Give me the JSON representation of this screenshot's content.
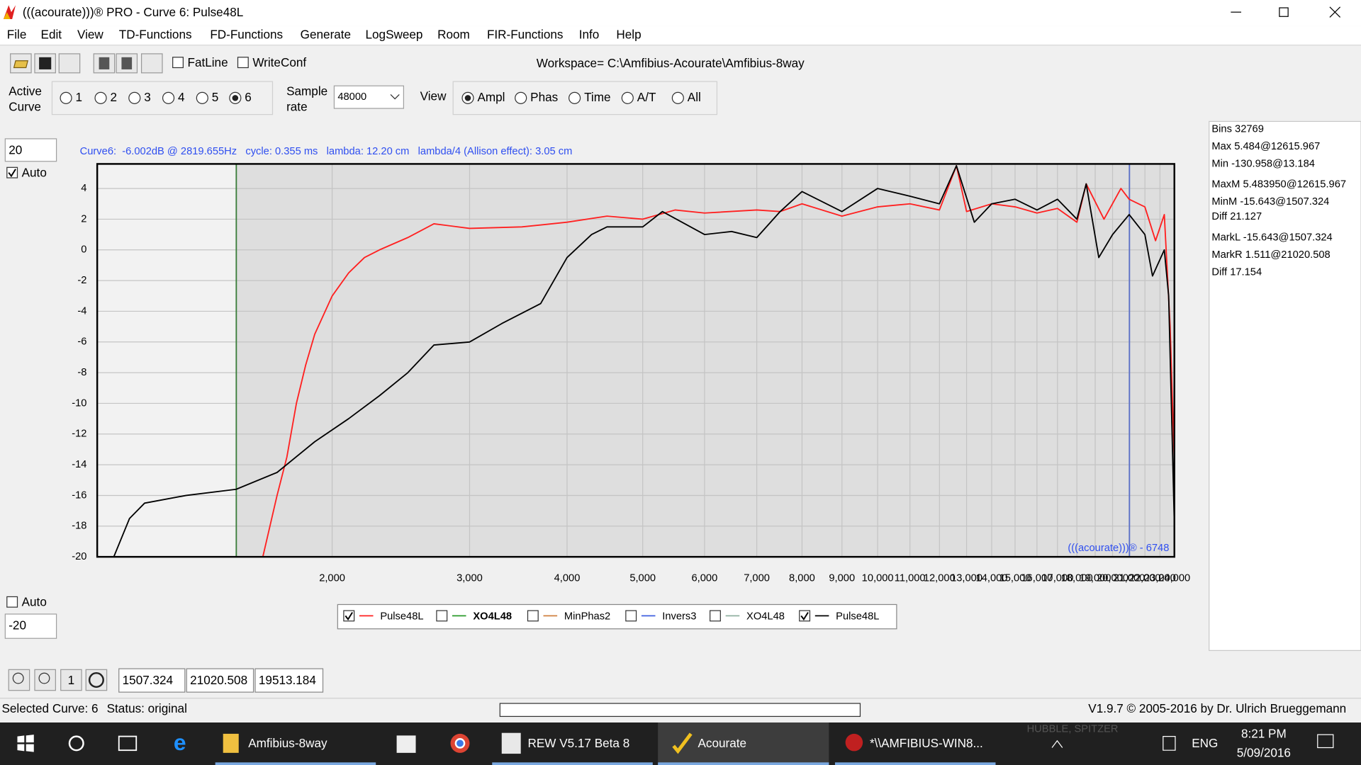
{
  "window": {
    "title": "(((acourate)))® PRO - Curve 6: Pulse48L"
  },
  "menu": [
    "File",
    "Edit",
    "View",
    "TD-Functions",
    "FD-Functions",
    "Generate",
    "LogSweep",
    "Room",
    "FIR-Functions",
    "Info",
    "Help"
  ],
  "toolbar": {
    "fatline": "FatLine",
    "writeconf": "WriteConf",
    "workspace": "Workspace= C:\\Amfibius-Acourate\\Amfibius-8way"
  },
  "controls": {
    "active_curve": [
      "Active",
      "Curve"
    ],
    "curves": [
      "1",
      "2",
      "3",
      "4",
      "5",
      "6"
    ],
    "curve_selected": [
      false,
      false,
      false,
      false,
      false,
      true
    ],
    "sample_rate_label": [
      "Sample",
      "rate"
    ],
    "sample_rate": "48000",
    "view_label": "View",
    "view_options": [
      "Ampl",
      "Phas",
      "Time",
      "A/T",
      "All"
    ],
    "view_selected": [
      true,
      false,
      false,
      false,
      false
    ]
  },
  "scale_controls": {
    "ymax_input": "20",
    "auto_top": "Auto",
    "auto_top_checked": true,
    "auto_bottom": "Auto",
    "auto_bottom_checked": false,
    "ymin_input": "-20"
  },
  "chart_data": {
    "type": "line",
    "subtitle": "Curve6:  -6.002dB @ 2819.655Hz   cycle: 0.355 ms   lambda: 12.20 cm   lambda/4 (Allison effect): 3.05 cm",
    "annotation": "(((acourate)))® - 6748",
    "x_log": true,
    "grid": true,
    "xlim": [
      1000,
      24000
    ],
    "ylim": [
      -20,
      5.6
    ],
    "yticks": [
      -20,
      -18,
      -16,
      -14,
      -12,
      -10,
      -8,
      -6,
      -4,
      -2,
      0,
      2,
      4
    ],
    "xticks": [
      {
        "value": 2000,
        "label": "2,000"
      },
      {
        "value": 3000,
        "label": "3,000"
      },
      {
        "value": 4000,
        "label": "4,000"
      },
      {
        "value": 5000,
        "label": "5,000"
      },
      {
        "value": 6000,
        "label": "6,000"
      },
      {
        "value": 7000,
        "label": "7,000"
      },
      {
        "value": 8000,
        "label": "8,000"
      },
      {
        "value": 9000,
        "label": "9,000"
      },
      {
        "value": 10000,
        "label": "10,000"
      },
      {
        "value": 11000,
        "label": "11,000"
      },
      {
        "value": 12000,
        "label": "12,000"
      },
      {
        "value": 13000,
        "label": "13,000"
      },
      {
        "value": 14000,
        "label": "14,000"
      },
      {
        "value": 15000,
        "label": "15,000"
      },
      {
        "value": 16000,
        "label": "16,000"
      },
      {
        "value": 17000,
        "label": "17,000"
      },
      {
        "value": 18000,
        "label": "18,000"
      },
      {
        "value": 19000,
        "label": "19,000"
      },
      {
        "value": 20000,
        "label": "20,000"
      },
      {
        "value": 21000,
        "label": "21,000"
      },
      {
        "value": 22000,
        "label": "22,000"
      },
      {
        "value": 23000,
        "label": "23,000"
      },
      {
        "value": 24000,
        "label": "24,000"
      }
    ],
    "markers": [
      {
        "x": 1507.324,
        "color": "#3a7d3a"
      },
      {
        "x": 21020.508,
        "color": "#5a6fc8"
      }
    ],
    "series": [
      {
        "name": "Pulse48L",
        "color": "#ff2020",
        "x": [
          1630,
          1700,
          1750,
          1800,
          1850,
          1900,
          2000,
          2100,
          2200,
          2300,
          2500,
          2700,
          3000,
          3500,
          4000,
          4500,
          5000,
          5500,
          6000,
          7000,
          7500,
          8000,
          9000,
          10000,
          11000,
          12000,
          12616,
          13000,
          14000,
          15000,
          16000,
          17000,
          18000,
          18500,
          19500,
          20500,
          21000,
          22000,
          22700,
          23300,
          23700,
          24000
        ],
        "values": [
          -20,
          -16,
          -13.5,
          -10,
          -7.5,
          -5.5,
          -3,
          -1.5,
          -0.5,
          0,
          0.8,
          1.7,
          1.4,
          1.5,
          1.8,
          2.2,
          2,
          2.6,
          2.4,
          2.6,
          2.5,
          3,
          2.2,
          2.8,
          3,
          2.6,
          5.48,
          2.5,
          3,
          2.8,
          2.4,
          2.7,
          1.8,
          4.3,
          2,
          4,
          3.3,
          2.8,
          0.6,
          2.3,
          -5,
          -14
        ]
      },
      {
        "name": "Pulse48L",
        "color": "#000000",
        "x": [
          1050,
          1100,
          1150,
          1300,
          1507,
          1700,
          1900,
          2100,
          2300,
          2500,
          2700,
          3000,
          3300,
          3700,
          4000,
          4300,
          4500,
          5000,
          5300,
          6000,
          6500,
          7000,
          7500,
          8000,
          9000,
          10000,
          11000,
          12000,
          12616,
          13300,
          14000,
          15000,
          16000,
          17000,
          18000,
          18500,
          19200,
          20000,
          21000,
          22000,
          22500,
          23300,
          23600,
          24000
        ],
        "values": [
          -20,
          -17.5,
          -16.5,
          -16,
          -15.6,
          -14.5,
          -12.5,
          -11,
          -9.5,
          -8,
          -6.2,
          -6,
          -4.8,
          -3.5,
          -0.5,
          1,
          1.5,
          1.5,
          2.5,
          1,
          1.2,
          0.8,
          2.5,
          3.8,
          2.5,
          4,
          3.5,
          3,
          5.48,
          1.8,
          3,
          3.3,
          2.6,
          3.3,
          2,
          4.3,
          -0.5,
          1,
          2.3,
          1,
          -1.7,
          0,
          -3,
          -18
        ]
      }
    ]
  },
  "legend": [
    {
      "label": "Pulse48L",
      "color": "#ff2020",
      "checked": true,
      "bold": false
    },
    {
      "label": "XO4L48",
      "color": "#2a9a2a",
      "checked": false,
      "bold": true
    },
    {
      "label": "MinPhas2",
      "color": "#d08040",
      "checked": false,
      "bold": false
    },
    {
      "label": "Invers3",
      "color": "#4060e0",
      "checked": false,
      "bold": false
    },
    {
      "label": "XO4L48",
      "color": "#90b0a0",
      "checked": false,
      "bold": false
    },
    {
      "label": "Pulse48L",
      "color": "#000000",
      "checked": true,
      "bold": false
    }
  ],
  "stats": [
    "Bins 32769",
    "Max 5.484@12615.967",
    "Min -130.958@13.184",
    "MaxM 5.483950@12615.967",
    "MinM -15.643@1507.324",
    "Diff 21.127",
    "MarkL -15.643@1507.324",
    "MarkR 1.511@21020.508",
    "Diff 17.154"
  ],
  "zoom": {
    "reset": "1",
    "fields": [
      "1507.324",
      "21020.508",
      "19513.184"
    ]
  },
  "status": {
    "curve": "Selected Curve: 6",
    "state": "Status: original",
    "version": "V1.9.7 © 2005-2016 by Dr. Ulrich Brueggemann"
  },
  "taskbar": {
    "apps": [
      "Amfibius-8way",
      "REW V5.17 Beta 8",
      "Acourate",
      "*\\\\AMFIBIUS-WIN8..."
    ],
    "overlay": "HUBBLE, SPITZER",
    "language": "ENG",
    "time": "8:21 PM",
    "date": "5/09/2016"
  }
}
